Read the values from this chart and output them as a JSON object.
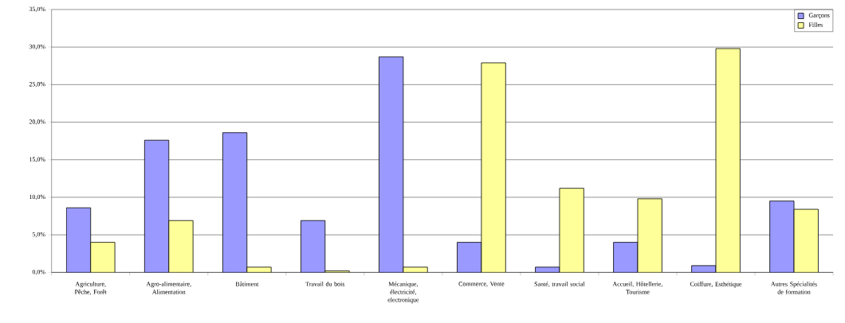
{
  "chart_data": {
    "type": "bar",
    "categories": [
      "Agriculture, Pêche, Forêt",
      "Agro-alimentaire, Alimentation",
      "Bâtiment",
      "Travail du bois",
      "Mécanique, électricité, electronique",
      "Commerce, Vente",
      "Santé, travail social",
      "Accueil, Hôtellerie, Tourisme",
      "Coiffure, Esthétique",
      "Autres Spécialités de formation"
    ],
    "series": [
      {
        "name": "Garçons",
        "color": "#9999ff",
        "values": [
          8.6,
          17.6,
          18.6,
          6.9,
          28.7,
          4.0,
          0.7,
          4.0,
          0.9,
          9.5
        ]
      },
      {
        "name": "Filles",
        "color": "#ffff99",
        "values": [
          4.0,
          6.9,
          0.7,
          0.2,
          0.7,
          27.9,
          11.2,
          9.8,
          29.8,
          8.4
        ]
      }
    ],
    "ylim": [
      0,
      35
    ],
    "yticks": [
      {
        "value": 0,
        "label": "0,0%"
      },
      {
        "value": 5,
        "label": "5,0%"
      },
      {
        "value": 10,
        "label": "10,0%"
      },
      {
        "value": 15,
        "label": "15,0%"
      },
      {
        "value": 20,
        "label": "20,0%"
      },
      {
        "value": 25,
        "label": "25,0%"
      },
      {
        "value": 30,
        "label": "30,0%"
      },
      {
        "value": 35,
        "label": "35,0%"
      }
    ],
    "grid": "y",
    "legend": "top right"
  }
}
